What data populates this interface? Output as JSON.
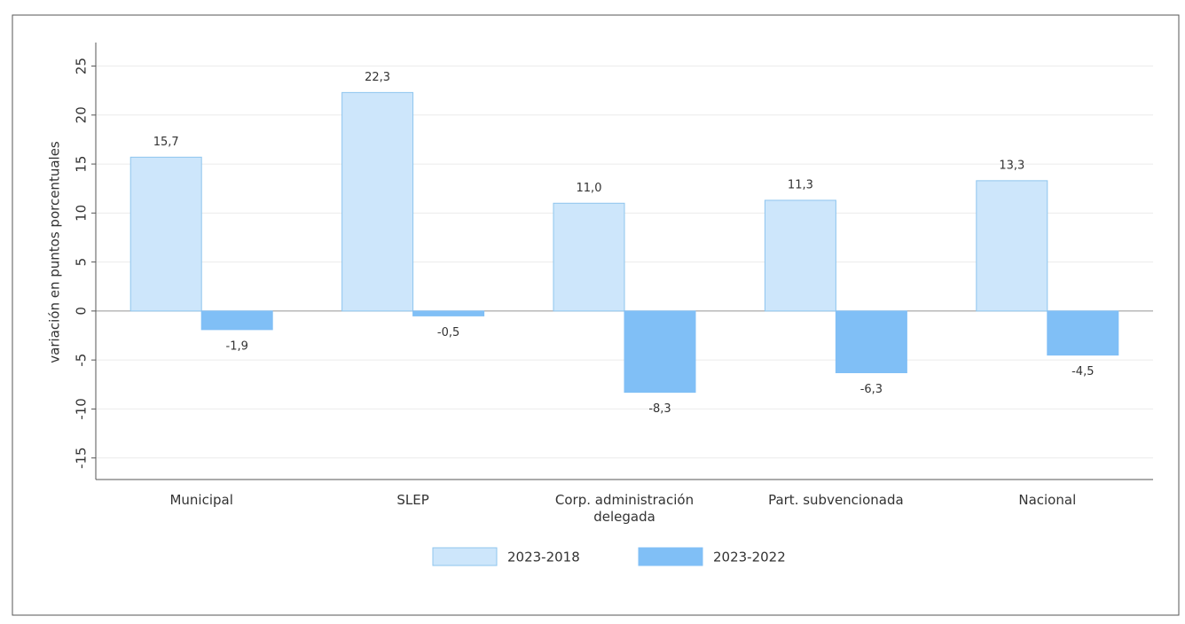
{
  "chart_data": {
    "type": "bar",
    "y_label": "variación en puntos porcentuales",
    "categories": [
      "Municipal",
      "SLEP",
      "Corp. administración delegada",
      "Part. subvencionada",
      "Nacional"
    ],
    "series": [
      {
        "name": "2023-2018",
        "color": "#cde6fb",
        "border_color": "#8ec5ee",
        "values": [
          15.7,
          22.3,
          11.0,
          11.3,
          13.3
        ],
        "value_labels": [
          "15,7",
          "22,3",
          "11,0",
          "11,3",
          "13,3"
        ]
      },
      {
        "name": "2023-2022",
        "color": "#80bff6",
        "border_color": "#80bff6",
        "values": [
          -1.9,
          -0.5,
          -8.3,
          -6.3,
          -4.5
        ],
        "value_labels": [
          "-1,9",
          "-0,5",
          "-8,3",
          "-6,3",
          "-4,5"
        ]
      }
    ],
    "ylim": [
      -17.2,
      27.4
    ],
    "yticks": [
      -15,
      -10,
      -5,
      0,
      5,
      10,
      15,
      20,
      25
    ],
    "grid": true,
    "legend": "bottom"
  }
}
